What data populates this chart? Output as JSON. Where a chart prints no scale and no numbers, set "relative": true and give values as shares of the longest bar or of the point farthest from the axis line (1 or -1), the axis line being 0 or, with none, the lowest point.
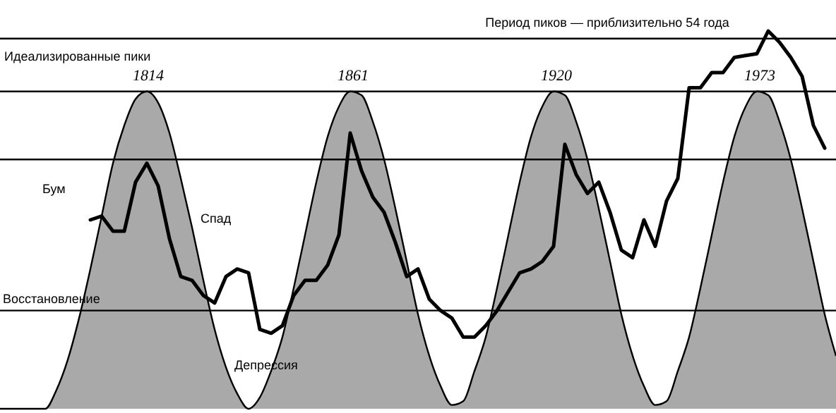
{
  "chart_data": {
    "type": "line",
    "relative": true,
    "categories": [
      null,
      null,
      null,
      null,
      null,
      null,
      null,
      null,
      null,
      null,
      null,
      null,
      null,
      null,
      null,
      null,
      null,
      null,
      null,
      null,
      null,
      null,
      null,
      null,
      null,
      null,
      null,
      null,
      null,
      null,
      null,
      null,
      null,
      null,
      null,
      null,
      null,
      null,
      null,
      null,
      null,
      null,
      null,
      null,
      null,
      null,
      null,
      null,
      null,
      null,
      null,
      null,
      null,
      null,
      null,
      null,
      null,
      null,
      null,
      null,
      null,
      null,
      null,
      null,
      null,
      null,
      null,
      null,
      null,
      null,
      null,
      null,
      null,
      null,
      null
    ],
    "series": [
      {
        "type": "area",
        "color": "#8c8c8c",
        "values": [
          0,
          0,
          0,
          0,
          0,
          0.05,
          0.13,
          0.24,
          0.37,
          0.51,
          0.65,
          0.75,
          0.82,
          0.84,
          0.81,
          0.73,
          0.61,
          0.48,
          0.34,
          0.21,
          0.11,
          0.04,
          0,
          0.03,
          0.1,
          0.19,
          0.32,
          0.46,
          0.6,
          0.72,
          0.8,
          0.84,
          0.83,
          0.76,
          0.66,
          0.53,
          0.39,
          0.25,
          0.14,
          0.06,
          0.01,
          0.02,
          0.1,
          0.19,
          0.32,
          0.46,
          0.6,
          0.72,
          0.8,
          0.84,
          0.83,
          0.76,
          0.66,
          0.53,
          0.39,
          0.25,
          0.14,
          0.06,
          0.01,
          0.02,
          0.1,
          0.19,
          0.32,
          0.46,
          0.6,
          0.72,
          0.8,
          0.84,
          0.83,
          0.76,
          0.66,
          0.53,
          0.39,
          0.25,
          0.14
        ]
      },
      {
        "type": "line",
        "color": "#000000",
        "values": [
          null,
          null,
          null,
          null,
          null,
          null,
          null,
          null,
          0.5,
          0.51,
          0.47,
          0.47,
          0.6,
          0.65,
          0.59,
          0.45,
          0.35,
          0.34,
          0.3,
          0.28,
          0.35,
          0.37,
          0.36,
          0.21,
          0.2,
          0.22,
          0.3,
          0.34,
          0.34,
          0.38,
          0.46,
          0.73,
          0.63,
          0.56,
          0.52,
          0.44,
          0.35,
          0.37,
          0.29,
          0.26,
          0.24,
          0.19,
          0.19,
          0.22,
          0.26,
          0.31,
          0.36,
          0.37,
          0.39,
          0.43,
          0.7,
          0.62,
          0.57,
          0.6,
          0.52,
          0.42,
          0.4,
          0.5,
          0.43,
          0.55,
          0.61,
          0.85,
          0.85,
          0.89,
          0.89,
          0.93,
          0.935,
          0.94,
          1,
          0.97,
          0.93,
          0.88,
          0.75,
          0.69,
          null
        ]
      }
    ],
    "ref_lines": [
      {
        "axis": "y",
        "value": 0.98,
        "color": "#000000"
      },
      {
        "axis": "y",
        "value": 0.84,
        "color": "#000000"
      },
      {
        "axis": "y",
        "value": 0.66,
        "color": "#000000"
      },
      {
        "axis": "y",
        "value": 0.26,
        "color": "#000000"
      }
    ],
    "annotations": [
      "Период пиков — приблизительно 54 года",
      "Идеализированные пики",
      "1814",
      "1861",
      "1920",
      "1973",
      "Бум",
      "Спад",
      "Восстановление",
      "Депрессия"
    ]
  }
}
